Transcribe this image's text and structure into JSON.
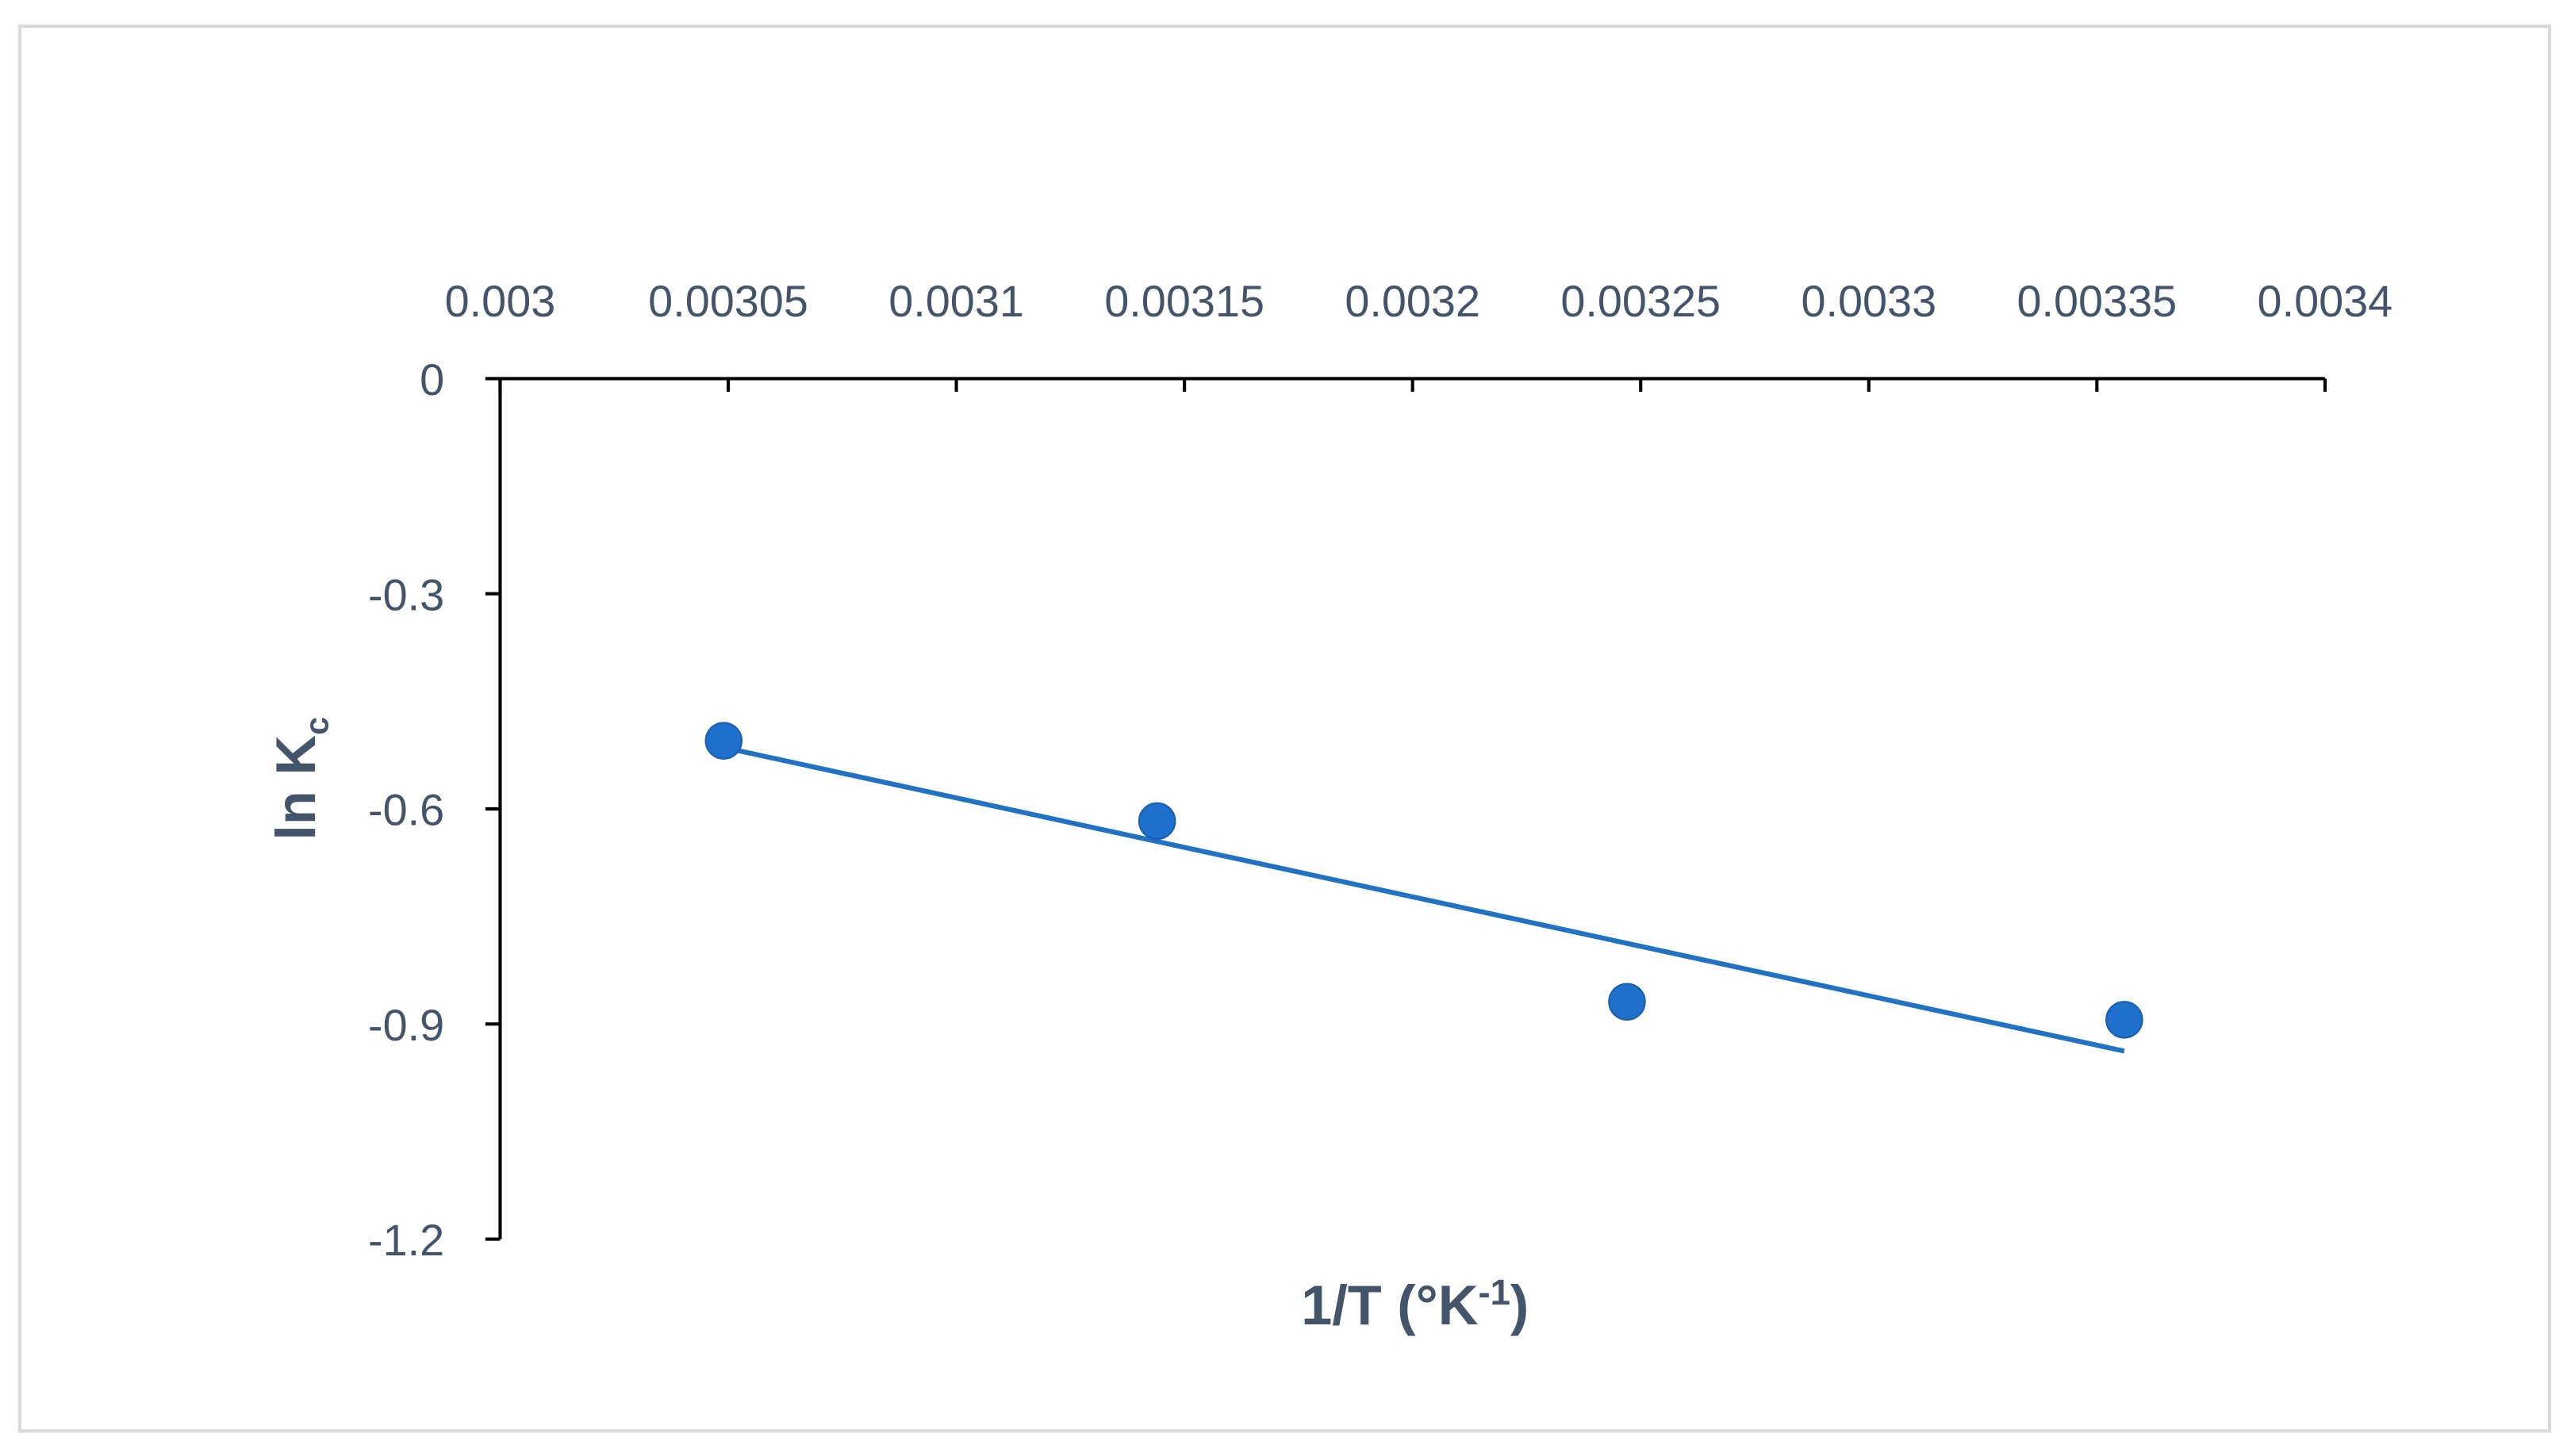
{
  "chart_data": {
    "type": "scatter",
    "xlabel": [
      "1/T (°K",
      "-1",
      ")"
    ],
    "ylabel": [
      "ln K",
      "c"
    ],
    "series": [
      {
        "color": "#1f6fcc",
        "x": [
          0.003049,
          0.003144,
          0.003247,
          0.003356
        ],
        "values": [
          -0.505,
          -0.617,
          -0.869,
          -0.894
        ]
      }
    ],
    "trendline": true,
    "trendline_color": "#2272c3",
    "xlim": [
      0.003,
      0.0034
    ],
    "xticks": [
      0.003,
      0.00305,
      0.0031,
      0.00315,
      0.0032,
      0.00325,
      0.0033,
      0.00335,
      0.0034
    ],
    "ylim": [
      -1.2,
      0
    ],
    "yticks": [
      0,
      -0.3,
      -0.6,
      -0.9,
      -1.2
    ],
    "x_axis_position": "top"
  }
}
